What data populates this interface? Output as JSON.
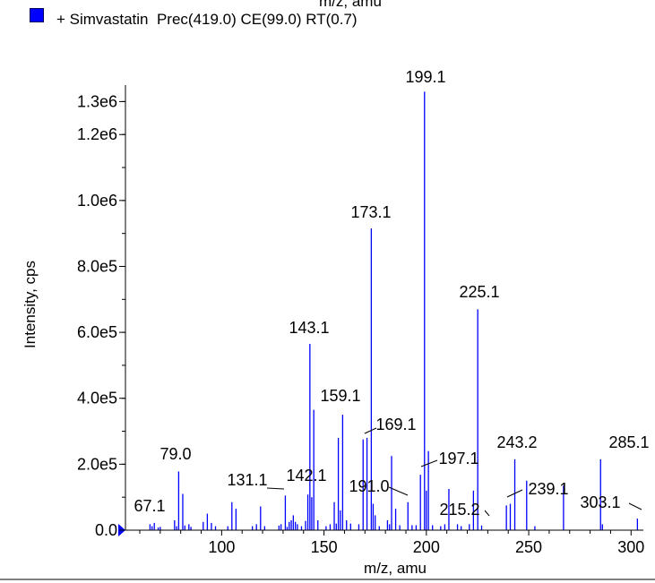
{
  "header": {
    "top_axis_label": "m/z, amu"
  },
  "legend": {
    "swatch_color": "#0000ff",
    "text": "+ Simvastatin  Prec(419.0) CE(99.0) RT(0.7)"
  },
  "chart_data": {
    "type": "bar",
    "xlabel": "m/z, amu",
    "ylabel": "Intensity, cps",
    "xlim": [
      53,
      306
    ],
    "ylim": [
      0,
      1350000
    ],
    "x_ticks": [
      {
        "value": 100,
        "label": "100"
      },
      {
        "value": 150,
        "label": "150"
      },
      {
        "value": 200,
        "label": "200"
      },
      {
        "value": 250,
        "label": "250"
      },
      {
        "value": 300,
        "label": "300"
      }
    ],
    "y_ticks": [
      {
        "value": 0,
        "label": "0.0"
      },
      {
        "value": 200000,
        "label": "2.0e5"
      },
      {
        "value": 400000,
        "label": "4.0e5"
      },
      {
        "value": 600000,
        "label": "6.0e5"
      },
      {
        "value": 800000,
        "label": "8.0e5"
      },
      {
        "value": 1000000,
        "label": "1.0e6"
      },
      {
        "value": 1200000,
        "label": "1.2e6"
      },
      {
        "value": 1300000,
        "label": "1.3e6"
      }
    ],
    "series_color": "#0000ff",
    "peaks": [
      {
        "x": 65,
        "y": 18000
      },
      {
        "x": 66,
        "y": 12000
      },
      {
        "x": 67.1,
        "y": 22000,
        "label": "67.1"
      },
      {
        "x": 69,
        "y": 8000
      },
      {
        "x": 70,
        "y": 10000
      },
      {
        "x": 77,
        "y": 30000
      },
      {
        "x": 78,
        "y": 12000
      },
      {
        "x": 79.0,
        "y": 178000,
        "label": "79.0"
      },
      {
        "x": 81,
        "y": 110000
      },
      {
        "x": 82,
        "y": 14000
      },
      {
        "x": 84,
        "y": 18000
      },
      {
        "x": 85,
        "y": 10000
      },
      {
        "x": 91,
        "y": 25000
      },
      {
        "x": 93,
        "y": 50000
      },
      {
        "x": 95,
        "y": 22000
      },
      {
        "x": 97,
        "y": 12000
      },
      {
        "x": 103,
        "y": 12000
      },
      {
        "x": 105,
        "y": 85000
      },
      {
        "x": 107,
        "y": 65000
      },
      {
        "x": 115,
        "y": 12000
      },
      {
        "x": 117,
        "y": 18000
      },
      {
        "x": 119,
        "y": 72000
      },
      {
        "x": 121,
        "y": 12000
      },
      {
        "x": 128,
        "y": 14000
      },
      {
        "x": 129,
        "y": 18000
      },
      {
        "x": 131.1,
        "y": 105000,
        "label": "131.1"
      },
      {
        "x": 132,
        "y": 10000
      },
      {
        "x": 133,
        "y": 25000
      },
      {
        "x": 134,
        "y": 30000
      },
      {
        "x": 135,
        "y": 45000
      },
      {
        "x": 136,
        "y": 25000
      },
      {
        "x": 137,
        "y": 18000
      },
      {
        "x": 139,
        "y": 12000
      },
      {
        "x": 141,
        "y": 28000
      },
      {
        "x": 142.1,
        "y": 108000,
        "label": "142.1"
      },
      {
        "x": 143.1,
        "y": 565000,
        "label": "143.1"
      },
      {
        "x": 144,
        "y": 100000
      },
      {
        "x": 145,
        "y": 365000
      },
      {
        "x": 147,
        "y": 30000
      },
      {
        "x": 151,
        "y": 12000
      },
      {
        "x": 153,
        "y": 18000
      },
      {
        "x": 155,
        "y": 85000
      },
      {
        "x": 156,
        "y": 20000
      },
      {
        "x": 157,
        "y": 280000
      },
      {
        "x": 158,
        "y": 60000
      },
      {
        "x": 159.1,
        "y": 350000,
        "label": "159.1"
      },
      {
        "x": 161,
        "y": 30000
      },
      {
        "x": 163,
        "y": 20000
      },
      {
        "x": 167,
        "y": 18000
      },
      {
        "x": 169.1,
        "y": 275000,
        "label": "169.1"
      },
      {
        "x": 171,
        "y": 280000
      },
      {
        "x": 173.1,
        "y": 915000,
        "label": "173.1"
      },
      {
        "x": 174,
        "y": 80000
      },
      {
        "x": 175,
        "y": 45000
      },
      {
        "x": 177,
        "y": 12000
      },
      {
        "x": 181,
        "y": 30000
      },
      {
        "x": 182,
        "y": 18000
      },
      {
        "x": 183,
        "y": 225000
      },
      {
        "x": 185,
        "y": 65000
      },
      {
        "x": 187,
        "y": 15000
      },
      {
        "x": 191.0,
        "y": 85000,
        "label": "191.0"
      },
      {
        "x": 193,
        "y": 15000
      },
      {
        "x": 195,
        "y": 15000
      },
      {
        "x": 197.1,
        "y": 168000,
        "label": "197.1"
      },
      {
        "x": 199.1,
        "y": 1330000,
        "label": "199.1"
      },
      {
        "x": 200,
        "y": 120000
      },
      {
        "x": 201,
        "y": 240000
      },
      {
        "x": 203,
        "y": 15000
      },
      {
        "x": 207,
        "y": 12000
      },
      {
        "x": 209,
        "y": 18000
      },
      {
        "x": 211,
        "y": 125000
      },
      {
        "x": 215.2,
        "y": 18000,
        "label": "215.2"
      },
      {
        "x": 217,
        "y": 12000
      },
      {
        "x": 221,
        "y": 18000
      },
      {
        "x": 223,
        "y": 120000
      },
      {
        "x": 225.1,
        "y": 670000,
        "label": "225.1"
      },
      {
        "x": 227,
        "y": 14000
      },
      {
        "x": 239.1,
        "y": 75000,
        "label": "239.1"
      },
      {
        "x": 241,
        "y": 80000
      },
      {
        "x": 243.2,
        "y": 215000,
        "label": "243.2"
      },
      {
        "x": 249,
        "y": 150000
      },
      {
        "x": 253,
        "y": 12000
      },
      {
        "x": 267,
        "y": 135000
      },
      {
        "x": 285.1,
        "y": 215000,
        "label": "285.1"
      },
      {
        "x": 286,
        "y": 18000
      },
      {
        "x": 303.1,
        "y": 35000,
        "label": "303.1"
      }
    ]
  }
}
